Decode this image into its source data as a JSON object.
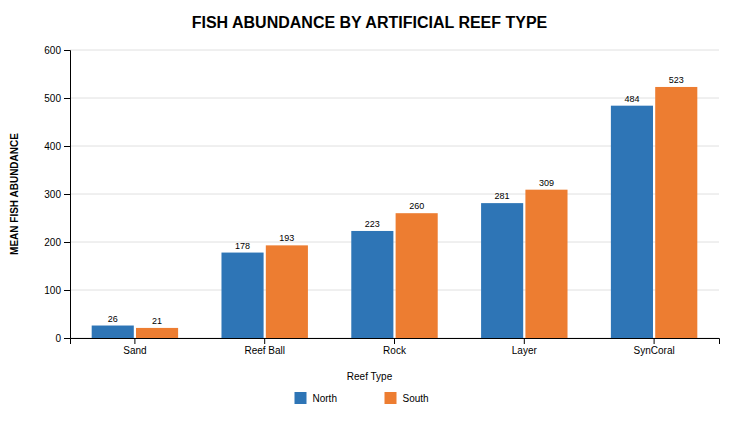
{
  "chart_data": {
    "type": "bar",
    "title": "FISH ABUNDANCE BY ARTIFICIAL REEF TYPE",
    "ylabel": "MEAN FISH ABUNDANCE",
    "xlabel": "Reef Type",
    "categories": [
      "Sand",
      "Reef Ball",
      "Rock",
      "Layer",
      "SynCoral"
    ],
    "series": [
      {
        "name": "North",
        "color": "#2E75B6",
        "values": [
          26,
          178,
          223,
          281,
          484
        ]
      },
      {
        "name": "South",
        "color": "#ED7D31",
        "values": [
          21,
          193,
          260,
          309,
          523
        ]
      }
    ],
    "ylim": [
      0,
      600
    ],
    "yticks": [
      0,
      100,
      200,
      300,
      400,
      500,
      600
    ],
    "grid": true,
    "data_labels": true,
    "legend": "bottom"
  }
}
